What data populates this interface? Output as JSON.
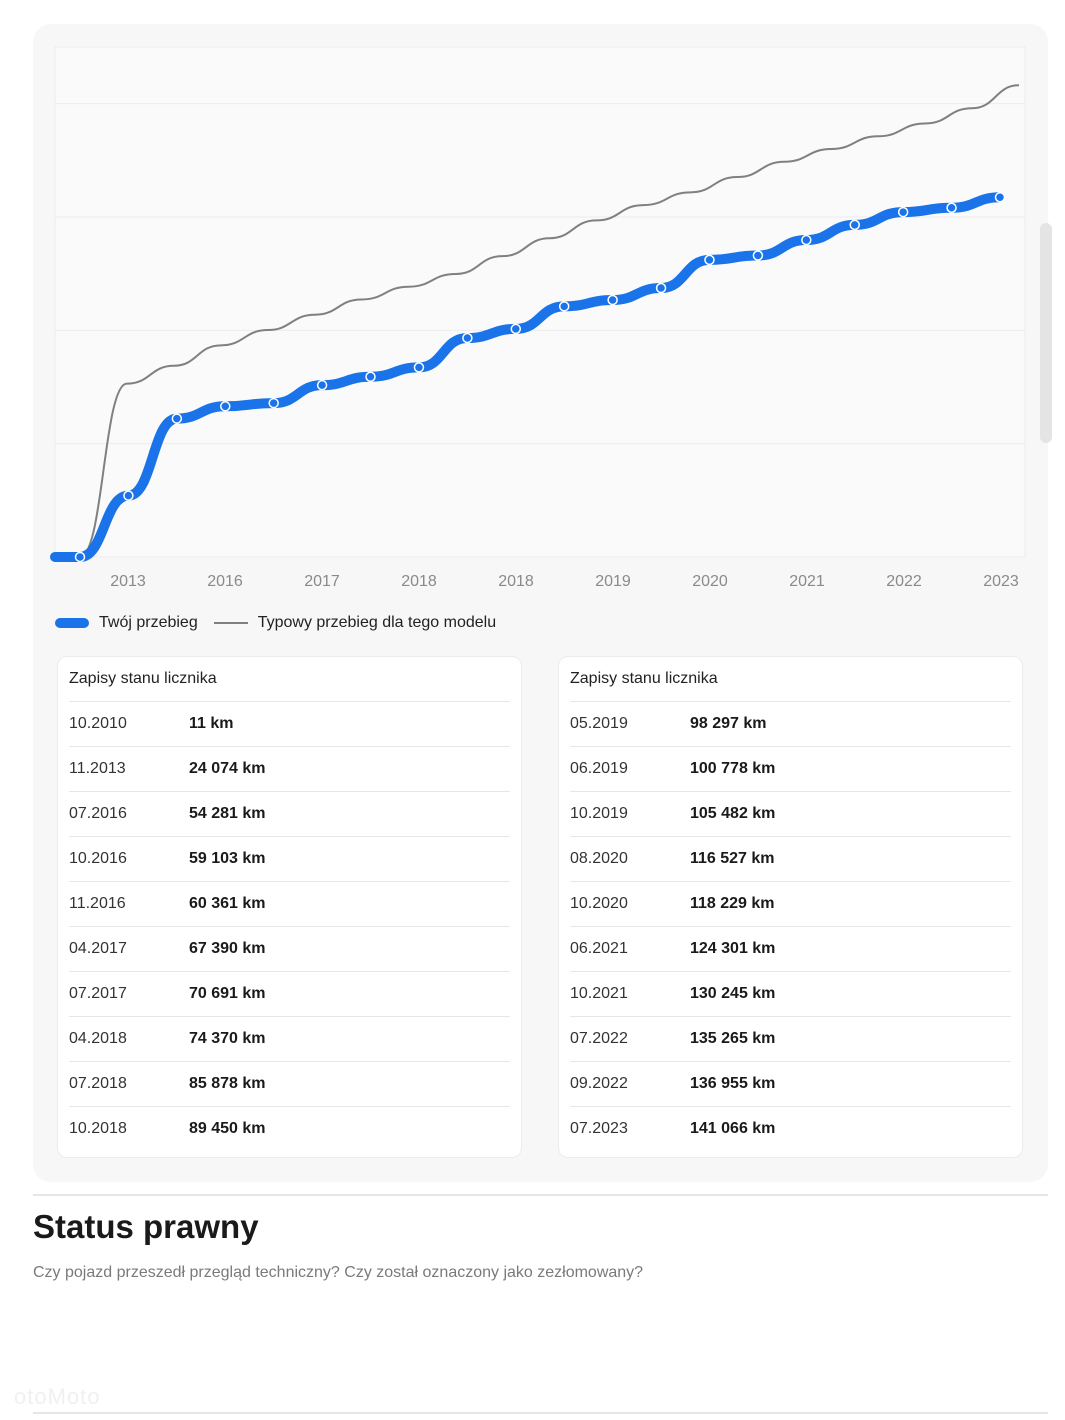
{
  "chart_data": {
    "type": "line",
    "x_tick_labels": [
      "2013",
      "2016",
      "2017",
      "2018",
      "2018",
      "2019",
      "2020",
      "2021",
      "2022",
      "2023"
    ],
    "series": [
      {
        "name": "Twój przebieg",
        "color": "#1a73e8",
        "points": [
          {
            "date": "10.2010",
            "km": 11
          },
          {
            "date": "11.2013",
            "km": 24074
          },
          {
            "date": "07.2016",
            "km": 54281
          },
          {
            "date": "10.2016",
            "km": 59103
          },
          {
            "date": "11.2016",
            "km": 60361
          },
          {
            "date": "04.2017",
            "km": 67390
          },
          {
            "date": "07.2017",
            "km": 70691
          },
          {
            "date": "04.2018",
            "km": 74370
          },
          {
            "date": "07.2018",
            "km": 85878
          },
          {
            "date": "10.2018",
            "km": 89450
          },
          {
            "date": "05.2019",
            "km": 98297
          },
          {
            "date": "06.2019",
            "km": 100778
          },
          {
            "date": "10.2019",
            "km": 105482
          },
          {
            "date": "08.2020",
            "km": 116527
          },
          {
            "date": "10.2020",
            "km": 118229
          },
          {
            "date": "06.2021",
            "km": 124301
          },
          {
            "date": "10.2021",
            "km": 130245
          },
          {
            "date": "07.2022",
            "km": 135265
          },
          {
            "date": "09.2022",
            "km": 136955
          },
          {
            "date": "07.2023",
            "km": 141066
          }
        ]
      },
      {
        "name": "Typowy przebieg dla tego modelu",
        "color": "#808080",
        "values": [
          0,
          68000,
          75000,
          83000,
          89000,
          95000,
          101000,
          106000,
          111000,
          118000,
          125000,
          132000,
          138000,
          143000,
          149000,
          155000,
          160000,
          165000,
          170000,
          176000,
          185000
        ]
      }
    ],
    "ylim": [
      0,
      200000
    ],
    "grid": true,
    "legend_position": "bottom-left"
  },
  "legend": {
    "blue_label": "Twój przebieg",
    "gray_label": "Typowy przebieg dla tego modelu"
  },
  "tables": [
    {
      "title": "Zapisy stanu licznika",
      "rows": [
        {
          "date": "10.2010",
          "value": "11 km"
        },
        {
          "date": "11.2013",
          "value": "24 074 km"
        },
        {
          "date": "07.2016",
          "value": "54 281 km"
        },
        {
          "date": "10.2016",
          "value": "59 103 km"
        },
        {
          "date": "11.2016",
          "value": "60 361 km"
        },
        {
          "date": "04.2017",
          "value": "67 390 km"
        },
        {
          "date": "07.2017",
          "value": "70 691 km"
        },
        {
          "date": "04.2018",
          "value": "74 370 km"
        },
        {
          "date": "07.2018",
          "value": "85 878 km"
        },
        {
          "date": "10.2018",
          "value": "89 450 km"
        }
      ]
    },
    {
      "title": "Zapisy stanu licznika",
      "rows": [
        {
          "date": "05.2019",
          "value": "98 297 km"
        },
        {
          "date": "06.2019",
          "value": "100 778 km"
        },
        {
          "date": "10.2019",
          "value": "105 482 km"
        },
        {
          "date": "08.2020",
          "value": "116 527 km"
        },
        {
          "date": "10.2020",
          "value": "118 229 km"
        },
        {
          "date": "06.2021",
          "value": "124 301 km"
        },
        {
          "date": "10.2021",
          "value": "130 245 km"
        },
        {
          "date": "07.2022",
          "value": "135 265 km"
        },
        {
          "date": "09.2022",
          "value": "136 955 km"
        },
        {
          "date": "07.2023",
          "value": "141 066 km"
        }
      ]
    }
  ],
  "section": {
    "title": "Status prawny",
    "subtitle": "Czy pojazd przeszedł przegląd techniczny? Czy został oznaczony jako zezłomowany?"
  },
  "watermark": "otoMoto"
}
